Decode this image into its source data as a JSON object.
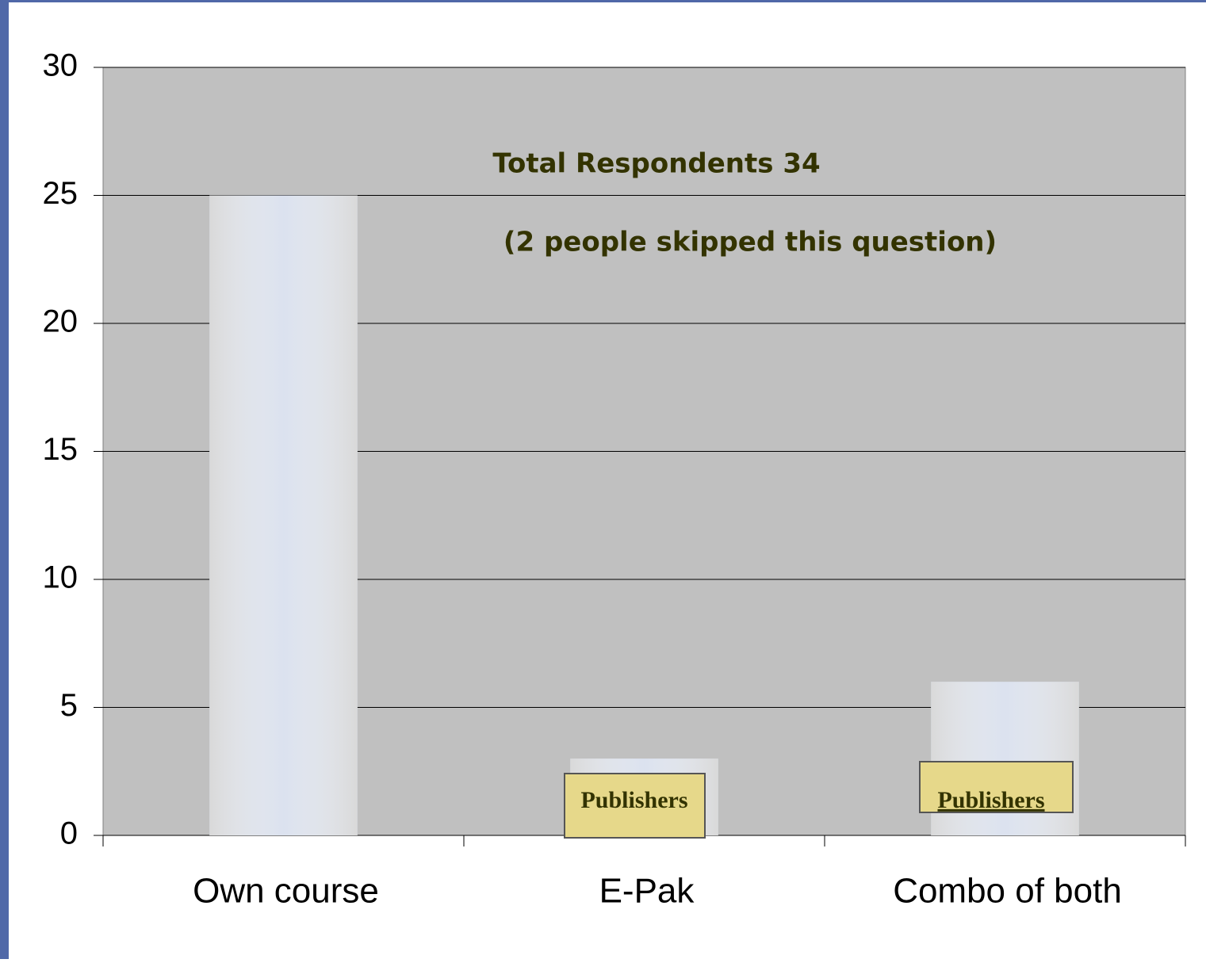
{
  "chart_data": {
    "type": "bar",
    "categories": [
      "Own course",
      "E-Pak",
      "Combo of both"
    ],
    "values": [
      25,
      3,
      6
    ],
    "color": "#c8d2e6",
    "ylim": [
      0,
      30
    ],
    "yticks": [
      0,
      5,
      10,
      15,
      20,
      25,
      30
    ],
    "grid": true,
    "annotations": [
      "Total Respondents  34",
      "(2 people skipped this question)",
      "Publishers",
      "Publishers"
    ]
  }
}
